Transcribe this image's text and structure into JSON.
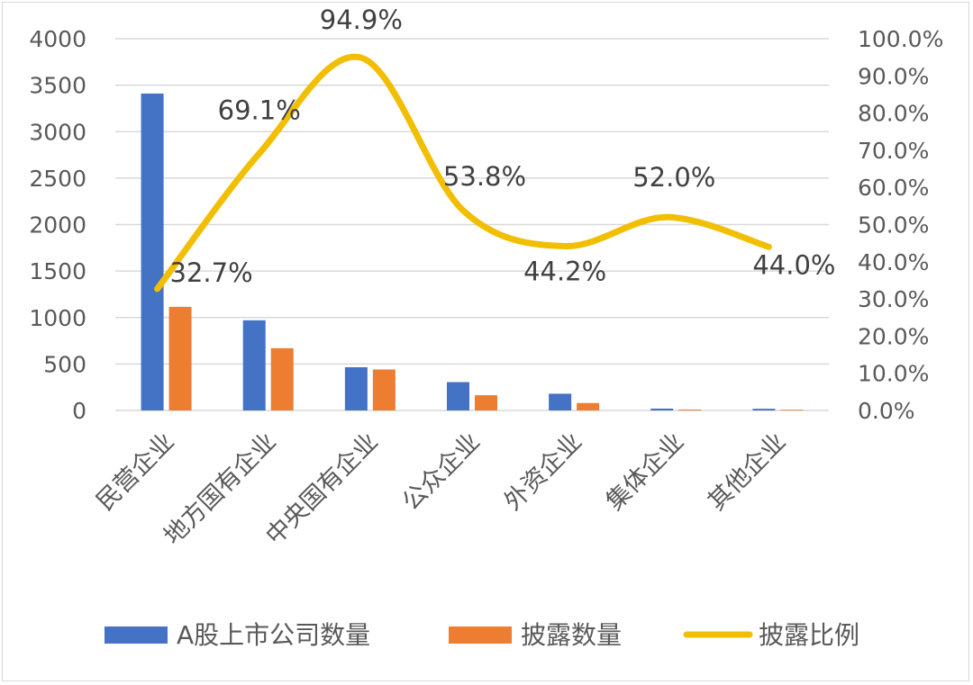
{
  "chart_data": {
    "type": "bar",
    "combo": "bar + smooth line on secondary axis",
    "categories": [
      "民营企业",
      "地方国有企业",
      "中央国有企业",
      "公众企业",
      "外资企业",
      "集体企业",
      "其他企业"
    ],
    "series": [
      {
        "name": "A股上市公司数量",
        "kind": "bar",
        "axis": "left",
        "color": "#4472C4",
        "values": [
          3410,
          970,
          465,
          305,
          180,
          20,
          18
        ]
      },
      {
        "name": "披露数量",
        "kind": "bar",
        "axis": "left",
        "color": "#ED7D31",
        "values": [
          1115,
          670,
          441,
          164,
          80,
          10,
          8
        ]
      },
      {
        "name": "披露比例",
        "kind": "line",
        "axis": "right",
        "color": "#F2BE00",
        "values": [
          32.7,
          69.1,
          94.9,
          53.8,
          44.2,
          52.0,
          44.0
        ],
        "labels": [
          "32.7%",
          "69.1%",
          "94.9%",
          "53.8%",
          "44.2%",
          "52.0%",
          "44.0%"
        ]
      }
    ],
    "y_left": {
      "ylim": [
        0,
        4000
      ],
      "ticks": [
        "0",
        "500",
        "1000",
        "1500",
        "2000",
        "2500",
        "3000",
        "3500",
        "4000"
      ]
    },
    "y_right": {
      "ylim": [
        0,
        100
      ],
      "ticks": [
        "0.0%",
        "10.0%",
        "20.0%",
        "30.0%",
        "40.0%",
        "50.0%",
        "60.0%",
        "70.0%",
        "80.0%",
        "90.0%",
        "100.0%"
      ]
    },
    "grid": "horizontal",
    "legend_position": "bottom",
    "colors": {
      "gridline": "#d9d9d9",
      "axis_text": "#595959",
      "label_text": "#404040"
    }
  }
}
